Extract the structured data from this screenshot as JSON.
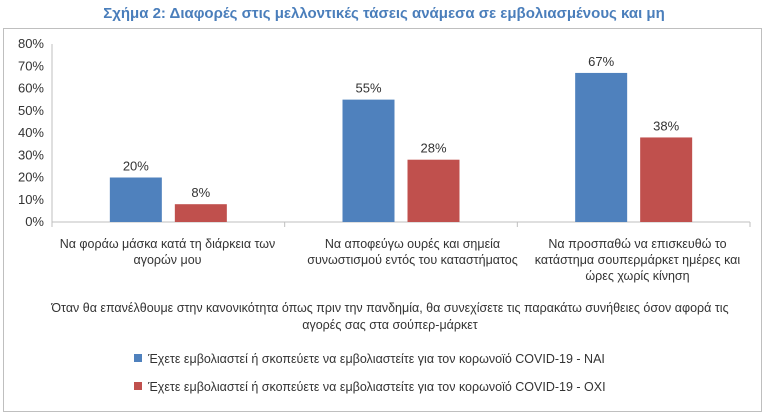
{
  "chart_data": {
    "type": "bar",
    "title": "Σχήμα 2: Διαφορές στις μελλοντικές τάσεις ανάμεσα σε εμβολιασμένους και μη",
    "xlabel": "Όταν θα επανέλθουμε στην κανονικότητα όπως πριν την πανδημία, θα συνεχίσετε τις παρακάτω συνήθειες όσον αφορά τις αγορές σας στα σούπερ-μάρκετ",
    "ylabel": "",
    "ylim": [
      0,
      80
    ],
    "yticks": [
      "0%",
      "10%",
      "20%",
      "30%",
      "40%",
      "50%",
      "60%",
      "70%",
      "80%"
    ],
    "categories": [
      "Να φοράω μάσκα κατά τη διάρκεια των αγορών μου",
      "Να αποφεύγω ουρές και σημεία συνωστισμού εντός του καταστήματος",
      "Να προσπαθώ να επισκευθώ το κατάστημα σουπερμάρκετ ημέρες και ώρες χωρίς κίνηση"
    ],
    "series": [
      {
        "name": "Έχετε εμβολιαστεί ή σκοπεύετε να εμβολιαστείτε για τον κορωνοϊό COVID-19 - ΝΑΙ",
        "values": [
          20,
          55,
          67
        ],
        "labels": [
          "20%",
          "55%",
          "67%"
        ],
        "color": "#4f81bd"
      },
      {
        "name": "Έχετε εμβολιαστεί ή σκοπεύετε να εμβολιαστείτε για τον κορωνοϊό COVID-19 - ΟΧΙ",
        "values": [
          8,
          28,
          38
        ],
        "labels": [
          "8%",
          "28%",
          "38%"
        ],
        "color": "#c0504d"
      }
    ],
    "grid": false,
    "legend_position": "bottom"
  }
}
